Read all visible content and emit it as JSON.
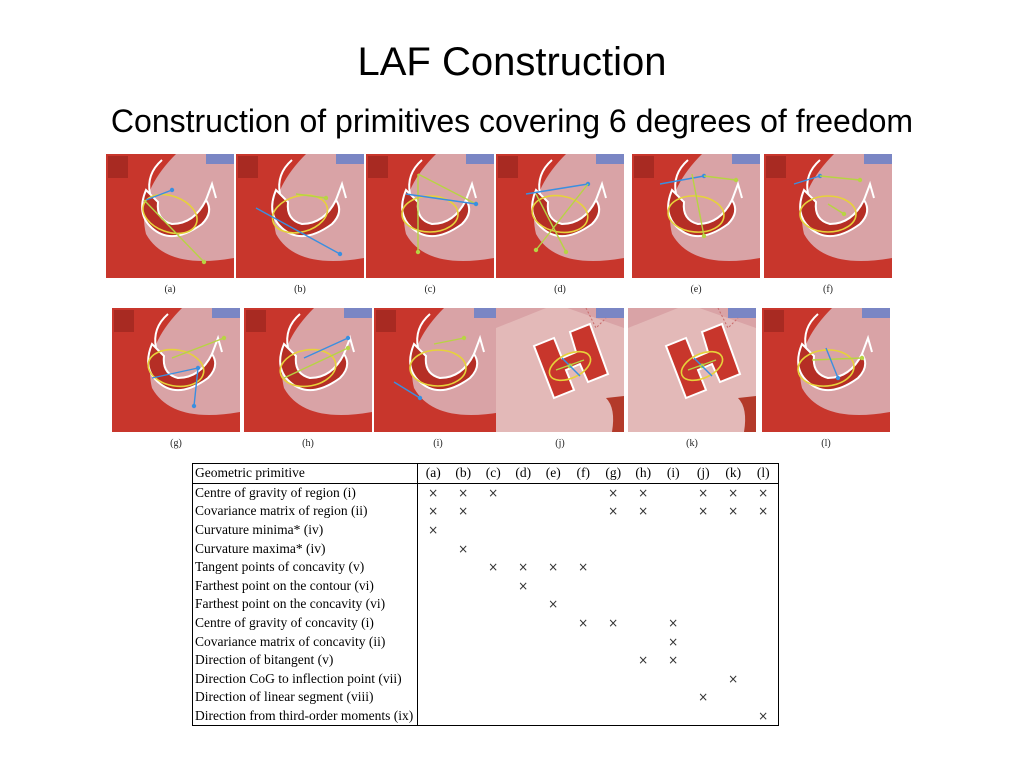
{
  "slide": {
    "title": "LAF Construction",
    "subtitle": "Construction of primitives covering 6 degrees of freedom"
  },
  "figure": {
    "panels": [
      {
        "caption": "(a)"
      },
      {
        "caption": "(b)"
      },
      {
        "caption": "(c)"
      },
      {
        "caption": "(d)"
      },
      {
        "caption": "(e)"
      },
      {
        "caption": "(f)"
      },
      {
        "caption": "(g)"
      },
      {
        "caption": "(h)"
      },
      {
        "caption": "(i)"
      },
      {
        "caption": "(j)"
      },
      {
        "caption": "(k)"
      },
      {
        "caption": "(l)"
      }
    ],
    "colors": {
      "background": "#d9a3a6",
      "region": "#c8362c",
      "contour": "#ffffff",
      "ellipse": "#e6d23a",
      "arrow_blue": "#3a8fe0",
      "line_green": "#b7d443"
    }
  },
  "table": {
    "header_label": "Geometric primitive",
    "columns": [
      "(a)",
      "(b)",
      "(c)",
      "(d)",
      "(e)",
      "(f)",
      "(g)",
      "(h)",
      "(i)",
      "(j)",
      "(k)",
      "(l)"
    ],
    "mark_symbol": "×",
    "rows": [
      {
        "label": "Centre of gravity of region (i)",
        "marks": [
          1,
          1,
          1,
          0,
          0,
          0,
          1,
          1,
          0,
          1,
          1,
          1
        ]
      },
      {
        "label": "Covariance matrix of region (ii)",
        "marks": [
          1,
          1,
          0,
          0,
          0,
          0,
          1,
          1,
          0,
          1,
          1,
          1
        ]
      },
      {
        "label": "Curvature minima* (iv)",
        "marks": [
          1,
          0,
          0,
          0,
          0,
          0,
          0,
          0,
          0,
          0,
          0,
          0
        ]
      },
      {
        "label": "Curvature maxima* (iv)",
        "marks": [
          0,
          1,
          0,
          0,
          0,
          0,
          0,
          0,
          0,
          0,
          0,
          0
        ]
      },
      {
        "label": "Tangent points of concavity (v)",
        "marks": [
          0,
          0,
          1,
          1,
          1,
          1,
          0,
          0,
          0,
          0,
          0,
          0
        ]
      },
      {
        "label": "Farthest point on the contour (vi)",
        "marks": [
          0,
          0,
          0,
          1,
          0,
          0,
          0,
          0,
          0,
          0,
          0,
          0
        ]
      },
      {
        "label": "Farthest point on the concavity (vi)",
        "marks": [
          0,
          0,
          0,
          0,
          1,
          0,
          0,
          0,
          0,
          0,
          0,
          0
        ]
      },
      {
        "label": "Centre of gravity of concavity (i)",
        "marks": [
          0,
          0,
          0,
          0,
          0,
          1,
          1,
          0,
          1,
          0,
          0,
          0
        ]
      },
      {
        "label": "Covariance matrix of concavity (ii)",
        "marks": [
          0,
          0,
          0,
          0,
          0,
          0,
          0,
          0,
          1,
          0,
          0,
          0
        ]
      },
      {
        "label": "Direction of bitangent (v)",
        "marks": [
          0,
          0,
          0,
          0,
          0,
          0,
          0,
          1,
          1,
          0,
          0,
          0
        ]
      },
      {
        "label": "Direction CoG to inflection point (vii)",
        "marks": [
          0,
          0,
          0,
          0,
          0,
          0,
          0,
          0,
          0,
          0,
          1,
          0
        ]
      },
      {
        "label": "Direction of linear segment (viii)",
        "marks": [
          0,
          0,
          0,
          0,
          0,
          0,
          0,
          0,
          0,
          1,
          0,
          0
        ]
      },
      {
        "label": "Direction from third-order moments (ix)",
        "marks": [
          0,
          0,
          0,
          0,
          0,
          0,
          0,
          0,
          0,
          0,
          0,
          1
        ]
      }
    ]
  }
}
